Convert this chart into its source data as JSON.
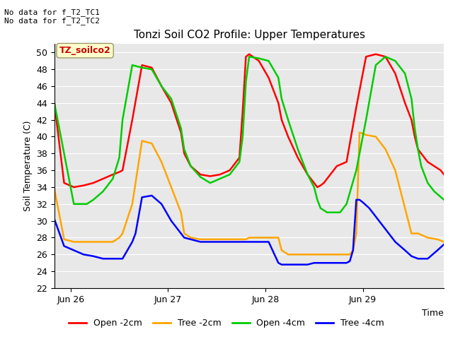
{
  "title": "Tonzi Soil CO2 Profile: Upper Temperatures",
  "ylabel": "Soil Temperature (C)",
  "xlabel": "Time",
  "annotations": [
    "No data for f_T2_TC1",
    "No data for f_T2_TC2"
  ],
  "box_label": "TZ_soilco2",
  "ylim": [
    22,
    51
  ],
  "yticks": [
    22,
    24,
    26,
    28,
    30,
    32,
    34,
    36,
    38,
    40,
    42,
    44,
    46,
    48,
    50
  ],
  "legend_entries": [
    "Open -2cm",
    "Tree -2cm",
    "Open -4cm",
    "Tree -4cm"
  ],
  "legend_colors": [
    "#ff0000",
    "#ffa500",
    "#00cc00",
    "#0000ff"
  ],
  "background_color": "#e8e8e8",
  "series": {
    "open_2cm": {
      "color": "#ff0000",
      "x": [
        0.0,
        0.3,
        0.6,
        0.9,
        1.2,
        1.5,
        1.8,
        2.0,
        2.1,
        2.4,
        2.7,
        3.0,
        3.3,
        3.6,
        3.9,
        4.0,
        4.2,
        4.5,
        4.8,
        5.1,
        5.4,
        5.5,
        5.6,
        5.7,
        5.8,
        5.9,
        6.0,
        6.3,
        6.6,
        6.9,
        7.0,
        7.2,
        7.5,
        7.8,
        8.0,
        8.1,
        8.2,
        8.3,
        8.4,
        8.5,
        8.6,
        8.7,
        9.0,
        9.3,
        9.6,
        9.9,
        10.2,
        10.5,
        10.8,
        11.0,
        11.1,
        11.2,
        11.3,
        11.4,
        11.5,
        11.7,
        11.9,
        12.0
      ],
      "y": [
        44.0,
        34.5,
        34.0,
        34.2,
        34.5,
        35.0,
        35.5,
        35.8,
        36.0,
        42.0,
        48.5,
        48.2,
        46.0,
        44.0,
        40.5,
        38.0,
        36.5,
        35.5,
        35.3,
        35.5,
        36.0,
        36.5,
        37.0,
        37.5,
        43.0,
        49.5,
        49.8,
        49.0,
        47.0,
        44.0,
        42.0,
        40.0,
        37.5,
        35.5,
        34.5,
        34.0,
        34.2,
        34.5,
        35.0,
        35.5,
        36.0,
        36.5,
        37.0,
        43.5,
        49.5,
        49.8,
        49.5,
        47.5,
        44.0,
        42.0,
        40.0,
        38.5,
        38.0,
        37.5,
        37.0,
        36.5,
        36.0,
        35.5
      ]
    },
    "tree_2cm": {
      "color": "#ffa500",
      "x": [
        0.0,
        0.3,
        0.6,
        0.9,
        1.2,
        1.5,
        1.8,
        2.0,
        2.1,
        2.4,
        2.7,
        3.0,
        3.3,
        3.6,
        3.9,
        4.0,
        4.2,
        4.5,
        4.8,
        5.1,
        5.4,
        5.5,
        5.6,
        5.8,
        5.9,
        6.0,
        6.3,
        6.6,
        6.9,
        7.0,
        7.2,
        7.5,
        7.8,
        8.0,
        8.2,
        8.5,
        8.8,
        9.0,
        9.1,
        9.2,
        9.3,
        9.4,
        9.6,
        9.9,
        10.2,
        10.5,
        10.8,
        11.0,
        11.2,
        11.5,
        11.8,
        12.0
      ],
      "y": [
        33.8,
        27.8,
        27.5,
        27.5,
        27.5,
        27.5,
        27.5,
        28.0,
        28.5,
        32.0,
        39.5,
        39.2,
        37.0,
        34.0,
        31.0,
        28.5,
        28.0,
        27.8,
        27.8,
        27.8,
        27.8,
        27.8,
        27.8,
        27.8,
        27.8,
        28.0,
        28.0,
        28.0,
        28.0,
        26.5,
        26.0,
        26.0,
        26.0,
        26.0,
        26.0,
        26.0,
        26.0,
        26.0,
        26.0,
        26.5,
        28.5,
        40.5,
        40.2,
        40.0,
        38.5,
        36.0,
        31.5,
        28.5,
        28.5,
        28.0,
        27.8,
        27.5
      ]
    },
    "open_4cm": {
      "color": "#00cc00",
      "x": [
        0.0,
        0.2,
        0.4,
        0.6,
        0.8,
        1.0,
        1.2,
        1.5,
        1.8,
        2.0,
        2.1,
        2.4,
        2.7,
        3.0,
        3.3,
        3.6,
        3.9,
        4.0,
        4.2,
        4.5,
        4.8,
        5.1,
        5.4,
        5.5,
        5.6,
        5.7,
        5.8,
        5.9,
        6.0,
        6.3,
        6.6,
        6.9,
        7.0,
        7.2,
        7.5,
        7.8,
        8.0,
        8.1,
        8.2,
        8.4,
        8.6,
        8.8,
        9.0,
        9.3,
        9.6,
        9.9,
        10.2,
        10.5,
        10.8,
        11.0,
        11.1,
        11.2,
        11.3,
        11.5,
        11.7,
        12.0
      ],
      "y": [
        44.0,
        40.0,
        36.0,
        32.0,
        32.0,
        32.0,
        32.5,
        33.5,
        35.0,
        37.5,
        42.0,
        48.5,
        48.2,
        48.0,
        46.0,
        44.5,
        41.0,
        38.5,
        36.5,
        35.2,
        34.5,
        35.0,
        35.5,
        36.0,
        36.5,
        37.0,
        40.0,
        46.5,
        49.5,
        49.3,
        49.0,
        47.0,
        44.5,
        42.0,
        38.5,
        35.5,
        34.0,
        32.5,
        31.5,
        31.0,
        31.0,
        31.0,
        32.0,
        36.0,
        42.0,
        48.5,
        49.5,
        49.0,
        47.5,
        44.5,
        41.0,
        38.5,
        36.5,
        34.5,
        33.5,
        32.5
      ]
    },
    "tree_4cm": {
      "color": "#0000ff",
      "x": [
        0.0,
        0.3,
        0.6,
        0.9,
        1.2,
        1.5,
        1.8,
        2.0,
        2.1,
        2.4,
        2.5,
        2.7,
        3.0,
        3.3,
        3.6,
        3.9,
        4.0,
        4.2,
        4.5,
        4.8,
        5.1,
        5.4,
        5.7,
        5.9,
        6.0,
        6.3,
        6.6,
        6.9,
        7.0,
        7.2,
        7.5,
        7.8,
        8.0,
        8.2,
        8.5,
        8.8,
        9.0,
        9.1,
        9.2,
        9.3,
        9.4,
        9.5,
        9.7,
        9.9,
        10.2,
        10.5,
        10.8,
        11.0,
        11.2,
        11.5,
        11.8,
        12.0
      ],
      "y": [
        30.2,
        27.0,
        26.5,
        26.0,
        25.8,
        25.5,
        25.5,
        25.5,
        25.5,
        27.5,
        28.5,
        32.8,
        33.0,
        32.0,
        30.0,
        28.5,
        28.0,
        27.8,
        27.5,
        27.5,
        27.5,
        27.5,
        27.5,
        27.5,
        27.5,
        27.5,
        27.5,
        25.0,
        24.8,
        24.8,
        24.8,
        24.8,
        25.0,
        25.0,
        25.0,
        25.0,
        25.0,
        25.2,
        26.5,
        32.5,
        32.5,
        32.2,
        31.5,
        30.5,
        29.0,
        27.5,
        26.5,
        25.8,
        25.5,
        25.5,
        26.5,
        27.2
      ]
    }
  },
  "xtick_positions": [
    0.5,
    3.5,
    6.5,
    9.5
  ],
  "xtick_values": [
    "Jun 26",
    "Jun 27",
    "Jun 28",
    "Jun 29"
  ]
}
